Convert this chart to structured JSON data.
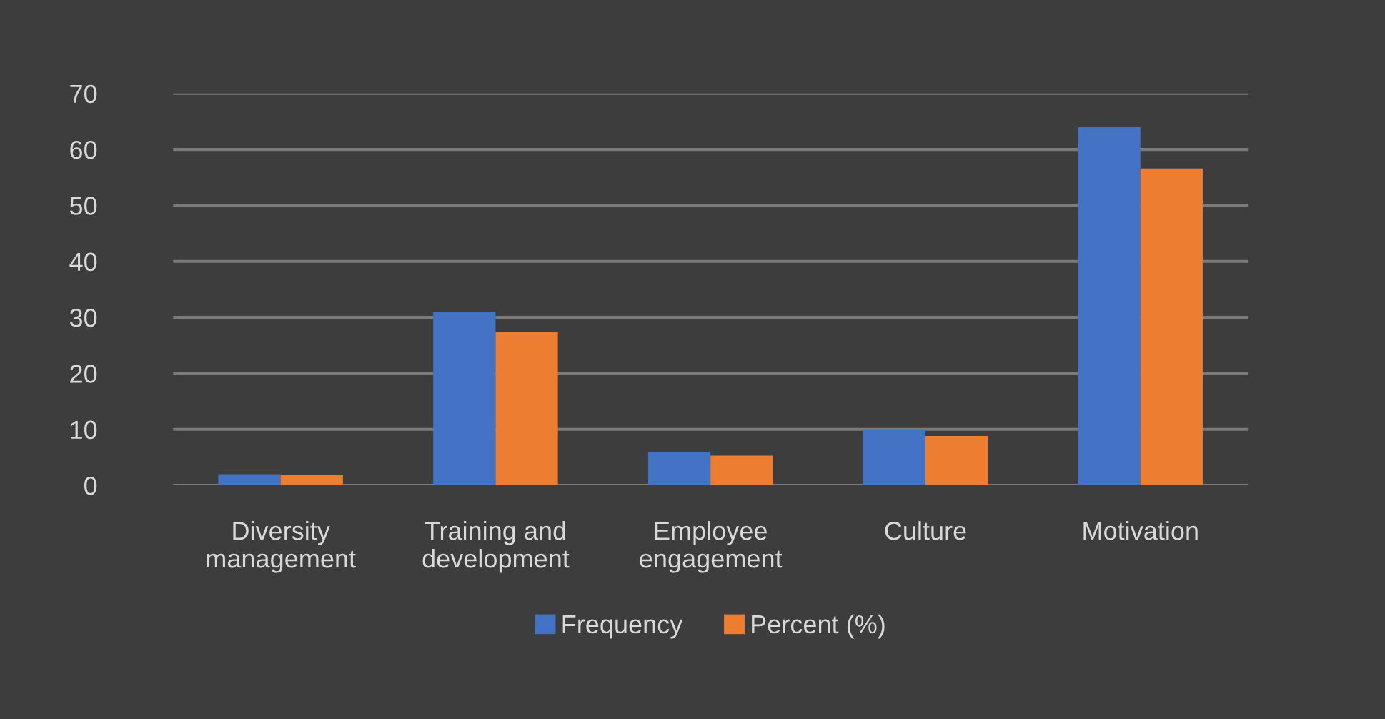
{
  "chart_data": {
    "type": "bar",
    "categories": [
      "Diversity\nmanagement",
      "Training and\ndevelopment",
      "Employee\nengagement",
      "Culture",
      "Motivation"
    ],
    "series": [
      {
        "name": "Frequency",
        "color": "#4472c4",
        "values": [
          2,
          31,
          6,
          10,
          64
        ]
      },
      {
        "name": "Percent (%)",
        "color": "#ed7d31",
        "values": [
          1.8,
          27.4,
          5.3,
          8.8,
          56.6
        ]
      }
    ],
    "ylim": [
      0,
      70
    ],
    "yticks": [
      0,
      10,
      20,
      30,
      40,
      50,
      60,
      70
    ],
    "grid": "y",
    "legend": "bottom"
  }
}
